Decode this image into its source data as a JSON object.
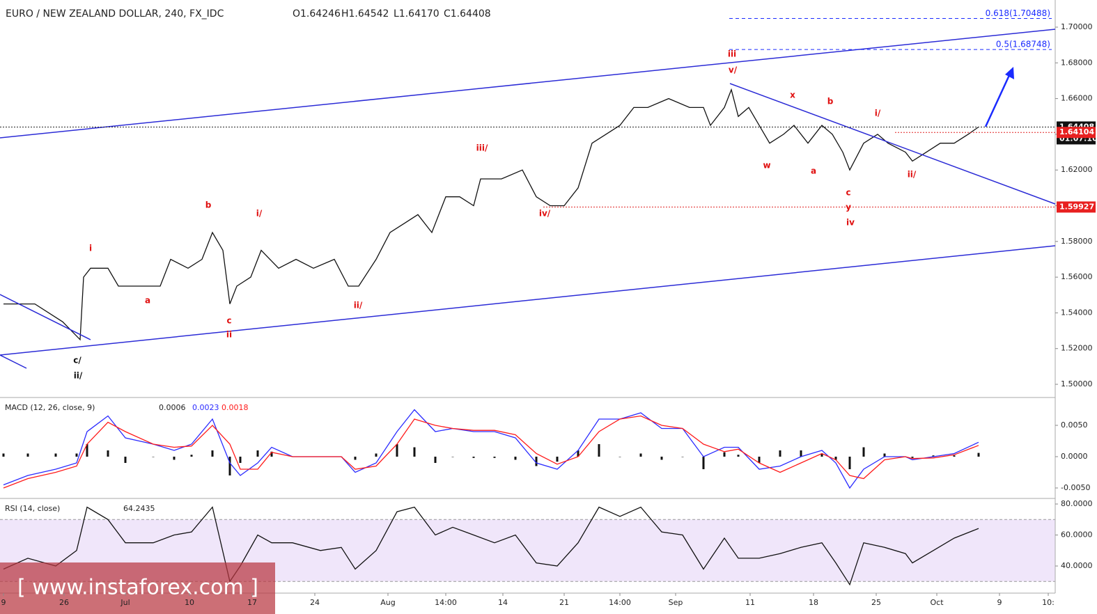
{
  "chart_data": [
    {
      "type": "line",
      "title": "EURO / NEW ZEALAND DOLLAR, 240, FX_IDC",
      "ohlc_labels": [
        "O1.64246",
        "H1.64542",
        "L1.64170",
        "C1.64408"
      ],
      "xlim": [
        0,
        303
      ],
      "xticks": [
        {
          "value": 1,
          "label": "9"
        },
        {
          "value": 18.4,
          "label": "26"
        },
        {
          "value": 36,
          "label": "Jul"
        },
        {
          "value": 54.4,
          "label": "10"
        },
        {
          "value": 72.4,
          "label": "17"
        },
        {
          "value": 90.4,
          "label": "24"
        },
        {
          "value": 111.4,
          "label": "Aug"
        },
        {
          "value": 128,
          "label": "14:00"
        },
        {
          "value": 144.4,
          "label": "14"
        },
        {
          "value": 162,
          "label": "21"
        },
        {
          "value": 178,
          "label": "14:00"
        },
        {
          "value": 194,
          "label": "Sep"
        },
        {
          "value": 215.4,
          "label": "11"
        },
        {
          "value": 233.6,
          "label": "18"
        },
        {
          "value": 251.6,
          "label": "25"
        },
        {
          "value": 269,
          "label": "Oct"
        },
        {
          "value": 287,
          "label": "9"
        },
        {
          "value": 301,
          "label": "10:"
        }
      ],
      "ylim": [
        1.493,
        1.7152
      ],
      "yticks": [
        {
          "value": 1.5,
          "label": "1.50000"
        },
        {
          "value": 1.52,
          "label": "1.52000"
        },
        {
          "value": 1.54,
          "label": "1.54000"
        },
        {
          "value": 1.56,
          "label": "1.56000"
        },
        {
          "value": 1.58,
          "label": "1.58000"
        },
        {
          "value": 1.6,
          "label": "1.60000"
        },
        {
          "value": 1.62,
          "label": "1.62000"
        },
        {
          "value": 1.64,
          "label": "1.64000"
        },
        {
          "value": 1.66,
          "label": "1.66000"
        },
        {
          "value": 1.68,
          "label": "1.68000"
        },
        {
          "value": 1.7,
          "label": "1.70000"
        }
      ],
      "x": [
        1,
        10,
        18,
        23,
        24,
        26,
        31,
        34,
        40,
        46,
        49,
        54,
        58,
        61,
        64,
        66,
        68,
        72,
        75,
        80,
        85,
        90,
        96,
        100,
        103,
        108,
        112,
        116,
        120,
        124,
        128,
        132,
        136,
        138,
        144,
        150,
        154,
        158,
        162,
        166,
        170,
        174,
        178,
        182,
        186,
        192,
        198,
        202,
        204,
        208,
        210,
        212,
        215,
        218,
        221,
        225,
        228,
        232,
        236,
        239,
        242,
        244,
        248,
        252,
        255,
        260,
        262,
        266,
        270,
        274,
        278,
        281
      ],
      "series": [
        {
          "color": "#111111",
          "values": [
            1.545,
            1.545,
            1.535,
            1.525,
            1.56,
            1.565,
            1.565,
            1.555,
            1.555,
            1.555,
            1.57,
            1.565,
            1.57,
            1.585,
            1.575,
            1.545,
            1.555,
            1.56,
            1.575,
            1.565,
            1.57,
            1.565,
            1.57,
            1.555,
            1.555,
            1.57,
            1.585,
            1.59,
            1.595,
            1.585,
            1.605,
            1.605,
            1.6,
            1.615,
            1.615,
            1.62,
            1.605,
            1.6,
            1.6,
            1.61,
            1.635,
            1.64,
            1.645,
            1.655,
            1.655,
            1.66,
            1.655,
            1.655,
            1.645,
            1.655,
            1.665,
            1.65,
            1.655,
            1.645,
            1.635,
            1.64,
            1.645,
            1.635,
            1.645,
            1.64,
            1.63,
            1.62,
            1.635,
            1.64,
            1.635,
            1.63,
            1.625,
            1.63,
            1.635,
            1.635,
            1.64,
            1.64408
          ]
        }
      ],
      "countdown": "01:07:10",
      "levels": [
        1.64104,
        1.59927
      ],
      "fib_levels": [
        {
          "value": 1.70488,
          "label": "0.618(1.70488)"
        },
        {
          "value": 1.68748,
          "label": "0.5(1.68748)"
        }
      ],
      "annotations": [
        "iii",
        "v/",
        "x",
        "b",
        "i/",
        "w",
        "a",
        "ii/",
        "c",
        "y",
        "iv",
        "iii/",
        "iv/",
        "b",
        "i/",
        "i",
        "a",
        "ii/",
        "c",
        "ii",
        "c/",
        "ii/"
      ]
    },
    {
      "type": "line",
      "title": "MACD (12, 26, close, 9)",
      "ylim": [
        -0.00656,
        0.009
      ],
      "yticks": [
        {
          "value": 0.005,
          "label": "0.0050"
        },
        {
          "value": 0,
          "label": "0.0000"
        },
        {
          "value": -0.005,
          "label": "-0.0050"
        }
      ],
      "x": [
        1,
        8,
        16,
        22,
        25,
        31,
        36,
        44,
        50,
        55,
        61,
        66,
        69,
        74,
        78,
        84,
        92,
        98,
        102,
        108,
        114,
        119,
        125,
        130,
        136,
        142,
        148,
        154,
        160,
        166,
        172,
        178,
        184,
        190,
        196,
        202,
        208,
        212,
        218,
        224,
        230,
        236,
        240,
        244,
        248,
        254,
        260,
        262,
        268,
        274,
        281
      ],
      "series": [
        {
          "type": "bar",
          "color": "#111111",
          "values": [
            0.0005,
            0.0005,
            0.0005,
            0.0005,
            0.002,
            0.001,
            -0.001,
            0,
            -0.0005,
            0.0003,
            0.001,
            -0.003,
            -0.001,
            0.001,
            0.0008,
            0,
            0,
            0,
            -0.0005,
            0.0005,
            0.002,
            0.0015,
            -0.001,
            0,
            -0.0002,
            -0.0002,
            -0.0005,
            -0.0015,
            -0.0008,
            0.001,
            0.002,
            0,
            0.0005,
            -0.0005,
            0,
            -0.002,
            0.0007,
            0.0003,
            -0.001,
            0.001,
            0.001,
            0.0005,
            -0.0005,
            -0.002,
            0.0015,
            0.0005,
            0,
            -0.0002,
            0.0002,
            0.0002,
            0.0006
          ]
        },
        {
          "type": "line",
          "color": "#2b2bff",
          "values": [
            -0.0045,
            -0.003,
            -0.002,
            -0.001,
            0.004,
            0.0065,
            0.003,
            0.002,
            0.001,
            0.002,
            0.006,
            -0.001,
            -0.003,
            -0.001,
            0.0015,
            0,
            0,
            0,
            -0.0025,
            -0.001,
            0.004,
            0.0075,
            0.004,
            0.0045,
            0.004,
            0.004,
            0.003,
            -0.001,
            -0.002,
            0.001,
            0.006,
            0.006,
            0.007,
            0.0045,
            0.0045,
            0,
            0.0015,
            0.0015,
            -0.002,
            -0.0015,
            0,
            0.001,
            -0.001,
            -0.005,
            -0.002,
            0,
            0,
            -0.0005,
            0,
            0.0005,
            0.0023
          ]
        },
        {
          "type": "line",
          "color": "#ff1a1a",
          "values": [
            -0.005,
            -0.0035,
            -0.0025,
            -0.0015,
            0.002,
            0.0055,
            0.004,
            0.002,
            0.0015,
            0.0017,
            0.005,
            0.002,
            -0.002,
            -0.002,
            0.0007,
            0,
            0,
            0,
            -0.002,
            -0.0015,
            0.002,
            0.006,
            0.005,
            0.0045,
            0.0042,
            0.0042,
            0.0035,
            0.0005,
            -0.0012,
            0,
            0.004,
            0.006,
            0.0065,
            0.005,
            0.0045,
            0.002,
            0.0008,
            0.0012,
            -0.001,
            -0.0025,
            -0.001,
            0.0005,
            -0.0005,
            -0.003,
            -0.0035,
            -0.0005,
            0,
            -0.0003,
            -0.0002,
            0.0003,
            0.0018
          ]
        }
      ]
    },
    {
      "type": "line",
      "title": "RSI (14, close)",
      "ylim": [
        23.4,
        82.7
      ],
      "yticks": [
        {
          "value": 80,
          "label": "80.0000"
        },
        {
          "value": 60,
          "label": "60.0000"
        },
        {
          "value": 40,
          "label": "40.0000"
        }
      ],
      "band": [
        30,
        70
      ],
      "x": [
        1,
        8,
        16,
        22,
        25,
        31,
        36,
        44,
        50,
        55,
        61,
        66,
        69,
        74,
        78,
        84,
        92,
        98,
        102,
        108,
        114,
        119,
        125,
        130,
        136,
        142,
        148,
        154,
        160,
        166,
        172,
        178,
        184,
        190,
        196,
        202,
        208,
        212,
        218,
        224,
        230,
        236,
        240,
        244,
        248,
        254,
        260,
        262,
        268,
        274,
        281
      ],
      "series": [
        {
          "type": "line",
          "color": "#111111",
          "values": [
            38,
            45,
            40,
            50,
            78,
            70,
            55,
            55,
            60,
            62,
            78,
            30,
            40,
            60,
            55,
            55,
            50,
            52,
            38,
            50,
            75,
            78,
            60,
            65,
            60,
            55,
            60,
            42,
            40,
            55,
            78,
            72,
            78,
            62,
            60,
            38,
            58,
            45,
            45,
            48,
            52,
            55,
            42,
            28,
            55,
            52,
            48,
            42,
            50,
            58,
            64.2435
          ]
        }
      ]
    }
  ],
  "watermark": "[ www.instaforex.com ]"
}
